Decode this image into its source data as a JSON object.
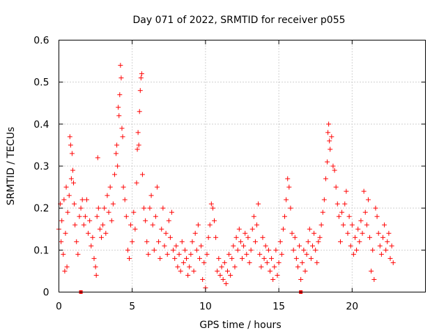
{
  "chart_data": {
    "type": "scatter",
    "title": "Day 071 of 2022, SRMTID for receiver p055",
    "xlabel": "GPS time / hours",
    "ylabel": "SRMTID / TECUs",
    "xlim": [
      0,
      25
    ],
    "ylim": [
      0,
      0.6
    ],
    "xticks": [
      0,
      5,
      10,
      15,
      20
    ],
    "xtick_labels": [
      "0",
      "5",
      "10",
      "15",
      "20"
    ],
    "yticks": [
      0,
      0.1,
      0.2,
      0.3,
      0.4,
      0.5,
      0.6
    ],
    "ytick_labels": [
      "0",
      "0.1",
      "0.2",
      "0.3",
      "0.4",
      "0.5",
      "0.6"
    ],
    "grid": true,
    "marker": "+",
    "color": "#ff0000",
    "series": [
      {
        "name": "p055",
        "points": [
          [
            0.0,
            0.15
          ],
          [
            0.1,
            0.21
          ],
          [
            0.15,
            0.12
          ],
          [
            0.2,
            0.17
          ],
          [
            0.3,
            0.09
          ],
          [
            0.35,
            0.22
          ],
          [
            0.4,
            0.05
          ],
          [
            0.45,
            0.14
          ],
          [
            0.5,
            0.25
          ],
          [
            0.55,
            0.06
          ],
          [
            0.6,
            0.19
          ],
          [
            0.7,
            0.23
          ],
          [
            0.75,
            0.37
          ],
          [
            0.8,
            0.35
          ],
          [
            0.85,
            0.27
          ],
          [
            0.9,
            0.33
          ],
          [
            0.95,
            0.29
          ],
          [
            1.0,
            0.26
          ],
          [
            1.05,
            0.21
          ],
          [
            1.1,
            0.16
          ],
          [
            1.2,
            0.12
          ],
          [
            1.3,
            0.09
          ],
          [
            1.4,
            0.18
          ],
          [
            1.5,
            0.2
          ],
          [
            1.6,
            0.22
          ],
          [
            1.7,
            0.16
          ],
          [
            1.8,
            0.18
          ],
          [
            1.9,
            0.22
          ],
          [
            2.0,
            0.14
          ],
          [
            2.1,
            0.17
          ],
          [
            2.2,
            0.11
          ],
          [
            2.3,
            0.13
          ],
          [
            2.4,
            0.08
          ],
          [
            2.5,
            0.06
          ],
          [
            2.55,
            0.04
          ],
          [
            2.6,
            0.18
          ],
          [
            2.65,
            0.32
          ],
          [
            2.7,
            0.2
          ],
          [
            2.8,
            0.15
          ],
          [
            2.9,
            0.13
          ],
          [
            3.0,
            0.16
          ],
          [
            3.1,
            0.2
          ],
          [
            3.2,
            0.14
          ],
          [
            3.3,
            0.23
          ],
          [
            3.4,
            0.19
          ],
          [
            3.5,
            0.25
          ],
          [
            3.6,
            0.17
          ],
          [
            3.7,
            0.21
          ],
          [
            3.8,
            0.28
          ],
          [
            3.9,
            0.33
          ],
          [
            3.95,
            0.35
          ],
          [
            4.0,
            0.3
          ],
          [
            4.05,
            0.44
          ],
          [
            4.1,
            0.42
          ],
          [
            4.15,
            0.47
          ],
          [
            4.2,
            0.54
          ],
          [
            4.25,
            0.51
          ],
          [
            4.3,
            0.39
          ],
          [
            4.35,
            0.37
          ],
          [
            4.4,
            0.25
          ],
          [
            4.5,
            0.22
          ],
          [
            4.6,
            0.18
          ],
          [
            4.7,
            0.1
          ],
          [
            4.8,
            0.08
          ],
          [
            4.9,
            0.16
          ],
          [
            5.0,
            0.12
          ],
          [
            5.1,
            0.19
          ],
          [
            5.2,
            0.15
          ],
          [
            5.3,
            0.26
          ],
          [
            5.35,
            0.34
          ],
          [
            5.4,
            0.38
          ],
          [
            5.45,
            0.35
          ],
          [
            5.5,
            0.43
          ],
          [
            5.55,
            0.48
          ],
          [
            5.6,
            0.51
          ],
          [
            5.65,
            0.52
          ],
          [
            5.7,
            0.28
          ],
          [
            5.8,
            0.2
          ],
          [
            5.9,
            0.17
          ],
          [
            6.0,
            0.12
          ],
          [
            6.1,
            0.09
          ],
          [
            6.2,
            0.2
          ],
          [
            6.3,
            0.23
          ],
          [
            6.4,
            0.16
          ],
          [
            6.5,
            0.1
          ],
          [
            6.6,
            0.18
          ],
          [
            6.7,
            0.25
          ],
          [
            6.8,
            0.12
          ],
          [
            6.9,
            0.08
          ],
          [
            7.0,
            0.15
          ],
          [
            7.1,
            0.2
          ],
          [
            7.2,
            0.11
          ],
          [
            7.3,
            0.14
          ],
          [
            7.4,
            0.09
          ],
          [
            7.5,
            0.17
          ],
          [
            7.6,
            0.13
          ],
          [
            7.7,
            0.19
          ],
          [
            7.8,
            0.1
          ],
          [
            7.9,
            0.08
          ],
          [
            8.0,
            0.11
          ],
          [
            8.1,
            0.06
          ],
          [
            8.2,
            0.09
          ],
          [
            8.3,
            0.05
          ],
          [
            8.4,
            0.12
          ],
          [
            8.5,
            0.07
          ],
          [
            8.6,
            0.1
          ],
          [
            8.7,
            0.08
          ],
          [
            8.8,
            0.04
          ],
          [
            8.9,
            0.06
          ],
          [
            9.0,
            0.09
          ],
          [
            9.1,
            0.12
          ],
          [
            9.2,
            0.05
          ],
          [
            9.3,
            0.14
          ],
          [
            9.4,
            0.1
          ],
          [
            9.5,
            0.16
          ],
          [
            9.6,
            0.08
          ],
          [
            9.7,
            0.11
          ],
          [
            9.8,
            0.03
          ],
          [
            9.9,
            0.07
          ],
          [
            10.0,
            0.01
          ],
          [
            10.1,
            0.09
          ],
          [
            10.2,
            0.13
          ],
          [
            10.3,
            0.16
          ],
          [
            10.4,
            0.21
          ],
          [
            10.5,
            0.2
          ],
          [
            10.6,
            0.17
          ],
          [
            10.7,
            0.13
          ],
          [
            10.8,
            0.05
          ],
          [
            10.9,
            0.08
          ],
          [
            11.0,
            0.04
          ],
          [
            11.1,
            0.06
          ],
          [
            11.2,
            0.03
          ],
          [
            11.3,
            0.07
          ],
          [
            11.4,
            0.02
          ],
          [
            11.5,
            0.05
          ],
          [
            11.6,
            0.09
          ],
          [
            11.7,
            0.04
          ],
          [
            11.8,
            0.08
          ],
          [
            11.9,
            0.11
          ],
          [
            12.0,
            0.06
          ],
          [
            12.1,
            0.13
          ],
          [
            12.2,
            0.1
          ],
          [
            12.3,
            0.15
          ],
          [
            12.4,
            0.12
          ],
          [
            12.5,
            0.08
          ],
          [
            12.6,
            0.11
          ],
          [
            12.7,
            0.14
          ],
          [
            12.8,
            0.09
          ],
          [
            12.9,
            0.13
          ],
          [
            13.0,
            0.07
          ],
          [
            13.1,
            0.1
          ],
          [
            13.2,
            0.15
          ],
          [
            13.3,
            0.18
          ],
          [
            13.4,
            0.12
          ],
          [
            13.5,
            0.16
          ],
          [
            13.6,
            0.21
          ],
          [
            13.7,
            0.09
          ],
          [
            13.8,
            0.06
          ],
          [
            13.9,
            0.13
          ],
          [
            14.0,
            0.08
          ],
          [
            14.1,
            0.11
          ],
          [
            14.2,
            0.07
          ],
          [
            14.3,
            0.1
          ],
          [
            14.4,
            0.05
          ],
          [
            14.5,
            0.08
          ],
          [
            14.6,
            0.03
          ],
          [
            14.7,
            0.06
          ],
          [
            14.8,
            0.1
          ],
          [
            14.9,
            0.04
          ],
          [
            15.0,
            0.07
          ],
          [
            15.1,
            0.12
          ],
          [
            15.2,
            0.09
          ],
          [
            15.3,
            0.15
          ],
          [
            15.4,
            0.18
          ],
          [
            15.5,
            0.22
          ],
          [
            15.6,
            0.27
          ],
          [
            15.7,
            0.25
          ],
          [
            15.8,
            0.2
          ],
          [
            15.9,
            0.14
          ],
          [
            16.0,
            0.1
          ],
          [
            16.1,
            0.13
          ],
          [
            16.2,
            0.08
          ],
          [
            16.3,
            0.06
          ],
          [
            16.4,
            0.11
          ],
          [
            16.5,
            0.03
          ],
          [
            16.6,
            0.07
          ],
          [
            16.7,
            0.1
          ],
          [
            16.8,
            0.05
          ],
          [
            16.9,
            0.09
          ],
          [
            17.0,
            0.12
          ],
          [
            17.1,
            0.15
          ],
          [
            17.2,
            0.08
          ],
          [
            17.3,
            0.11
          ],
          [
            17.4,
            0.14
          ],
          [
            17.5,
            0.1
          ],
          [
            17.6,
            0.07
          ],
          [
            17.7,
            0.12
          ],
          [
            17.8,
            0.13
          ],
          [
            17.9,
            0.16
          ],
          [
            18.0,
            0.19
          ],
          [
            18.1,
            0.22
          ],
          [
            18.2,
            0.27
          ],
          [
            18.3,
            0.31
          ],
          [
            18.35,
            0.38
          ],
          [
            18.4,
            0.4
          ],
          [
            18.45,
            0.36
          ],
          [
            18.5,
            0.34
          ],
          [
            18.6,
            0.37
          ],
          [
            18.7,
            0.3
          ],
          [
            18.8,
            0.29
          ],
          [
            18.9,
            0.25
          ],
          [
            19.0,
            0.21
          ],
          [
            19.1,
            0.18
          ],
          [
            19.2,
            0.12
          ],
          [
            19.3,
            0.19
          ],
          [
            19.4,
            0.16
          ],
          [
            19.5,
            0.21
          ],
          [
            19.6,
            0.24
          ],
          [
            19.7,
            0.14
          ],
          [
            19.8,
            0.18
          ],
          [
            19.9,
            0.11
          ],
          [
            20.0,
            0.16
          ],
          [
            20.1,
            0.09
          ],
          [
            20.2,
            0.13
          ],
          [
            20.3,
            0.1
          ],
          [
            20.4,
            0.15
          ],
          [
            20.5,
            0.12
          ],
          [
            20.6,
            0.17
          ],
          [
            20.7,
            0.14
          ],
          [
            20.8,
            0.24
          ],
          [
            20.9,
            0.19
          ],
          [
            21.0,
            0.16
          ],
          [
            21.1,
            0.22
          ],
          [
            21.2,
            0.13
          ],
          [
            21.3,
            0.05
          ],
          [
            21.4,
            0.1
          ],
          [
            21.5,
            0.03
          ],
          [
            21.6,
            0.2
          ],
          [
            21.7,
            0.18
          ],
          [
            21.8,
            0.14
          ],
          [
            21.9,
            0.11
          ],
          [
            22.0,
            0.09
          ],
          [
            22.1,
            0.13
          ],
          [
            22.2,
            0.16
          ],
          [
            22.3,
            0.1
          ],
          [
            22.4,
            0.12
          ],
          [
            22.5,
            0.14
          ],
          [
            22.6,
            0.08
          ],
          [
            22.7,
            0.11
          ],
          [
            22.8,
            0.07
          ]
        ]
      }
    ],
    "highlighted_markers": [
      [
        1.5,
        0.0
      ],
      [
        16.5,
        0.0
      ]
    ]
  }
}
